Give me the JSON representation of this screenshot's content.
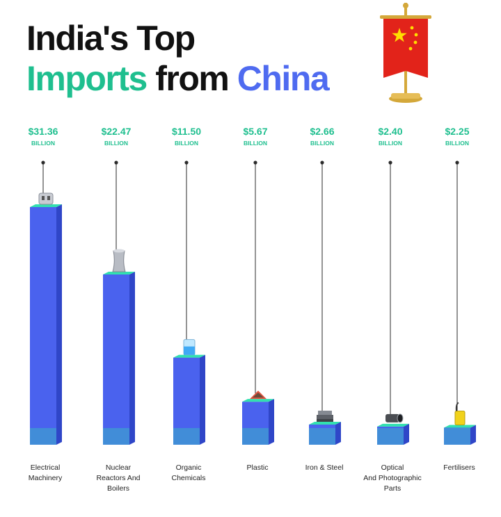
{
  "title": {
    "line1": "India's Top",
    "line2_word1": "Imports",
    "line2_word2": "from",
    "line2_word3": "China"
  },
  "colors": {
    "green": "#1fbf8f",
    "blue": "#4f6bf0",
    "bar_front": "#4a62ee",
    "bar_side": "#2f46c8",
    "bar_top": "#32e0b0",
    "flag_red": "#e2231a",
    "flag_star": "#ffde00",
    "flag_pole": "#d4a83a"
  },
  "flag_icon": "china-flag-icon",
  "chart_data": {
    "type": "bar",
    "title": "India's Top Imports from China",
    "unit": "BILLION",
    "categories": [
      "Electrical Machinery",
      "Nuclear Reactors And Boilers",
      "Organic Chemicals",
      "Plastic",
      "Iron & Steel",
      "Optical And Photographic Parts",
      "Fertilisers"
    ],
    "category_lines": [
      [
        "Electrical",
        "Machinery"
      ],
      [
        "Nuclear",
        "Reactors And",
        "Boilers"
      ],
      [
        "Organic",
        "Chemicals"
      ],
      [
        "Plastic"
      ],
      [
        "Iron & Steel"
      ],
      [
        "Optical",
        "And Photographic",
        "Parts"
      ],
      [
        "Fertilisers"
      ]
    ],
    "values": [
      31.36,
      22.47,
      11.5,
      5.67,
      2.66,
      2.4,
      2.25
    ],
    "value_labels": [
      "$31.36",
      "$22.47",
      "$11.50",
      "$5.67",
      "$2.66",
      "$2.40",
      "$2.25"
    ],
    "icons": [
      "plug-icon",
      "cooling-tower-icon",
      "beaker-icon",
      "plastic-sheet-icon",
      "steel-bars-icon",
      "lens-icon",
      "fertiliser-can-icon"
    ],
    "xlabel": "",
    "ylabel": "",
    "grid": false,
    "legend": "none"
  }
}
